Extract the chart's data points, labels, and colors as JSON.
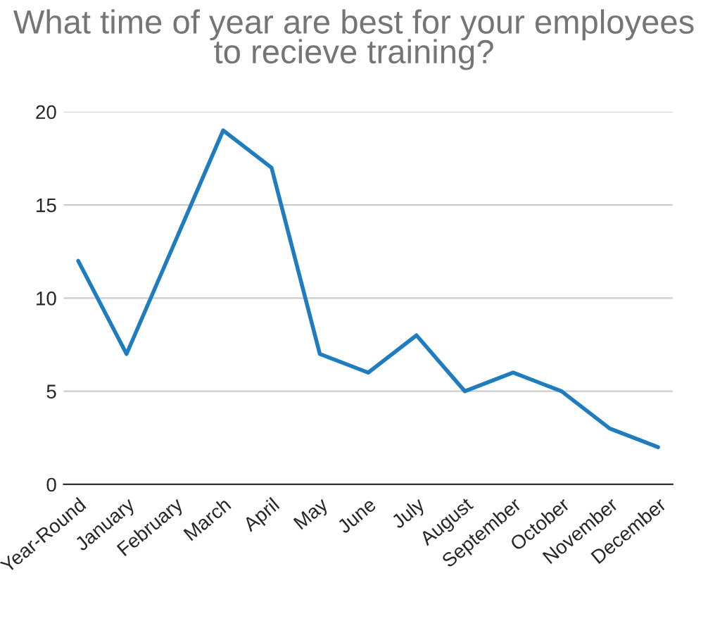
{
  "chart_data": {
    "type": "line",
    "title": "What time of year are best for your employees to recieve training?",
    "categories": [
      "Year-Round",
      "January",
      "February",
      "March",
      "April",
      "May",
      "June",
      "July",
      "August",
      "September",
      "October",
      "November",
      "December"
    ],
    "series": [
      {
        "color": "#1f7dbf",
        "values": [
          12,
          7,
          13,
          19,
          17,
          7,
          6,
          8,
          5,
          6,
          5,
          3,
          2
        ]
      }
    ],
    "ylim": [
      0,
      20
    ],
    "yticks": [
      0,
      5,
      10,
      15,
      20
    ],
    "grid": "y",
    "legend": false,
    "marker": "none",
    "line_style": "solid"
  }
}
